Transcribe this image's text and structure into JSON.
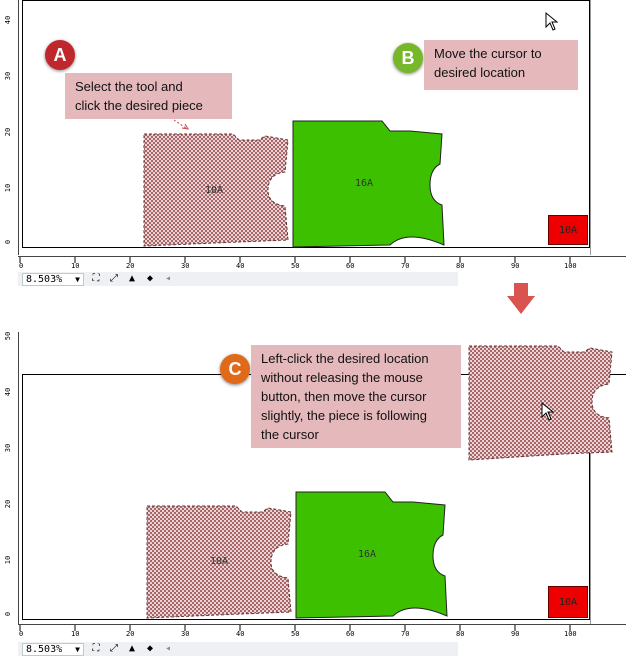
{
  "panel_top": {
    "callout_a": {
      "badge": "A",
      "text_line1": "Select the tool and",
      "text_line2": "click the desired piece"
    },
    "callout_b": {
      "badge": "B",
      "text_line1": "Move the cursor to",
      "text_line2": "desired location"
    },
    "pieces": {
      "left": "10A",
      "right": "16A",
      "marker": "10A"
    },
    "vruler_labels": [
      "40",
      "30",
      "20",
      "10",
      "0"
    ],
    "hruler_labels": [
      "0",
      "10",
      "20",
      "30",
      "40",
      "50",
      "60",
      "70",
      "80",
      "90",
      "100"
    ],
    "zoom": "8.503%"
  },
  "panel_bottom": {
    "callout_c": {
      "badge": "C",
      "text_line1": "Left-click the desired location",
      "text_line2": "without  releasing the mouse",
      "text_line3": "button, then move the cursor",
      "text_line4": "slightly, the piece is following",
      "text_line5": "the cursor"
    },
    "pieces": {
      "left": "10A",
      "right": "16A",
      "marker": "10A"
    },
    "vruler_labels": [
      "50",
      "40",
      "30",
      "20",
      "10",
      "0"
    ],
    "hruler_labels": [
      "0",
      "10",
      "20",
      "30",
      "40",
      "50",
      "60",
      "70",
      "80",
      "90",
      "100"
    ],
    "zoom": "8.503%"
  },
  "colors": {
    "green_piece": "#3cc000",
    "pattern_piece": "#caa9ad",
    "red_marker": "#ee0000",
    "badge_a": "#c0272d",
    "badge_b": "#77b82a",
    "badge_c": "#e06a1a",
    "arrow": "#d9534f"
  },
  "icons": {
    "dropdown": "chevron-down-icon",
    "fit": "fit-page-icon",
    "expand": "expand-icon",
    "hill1": "mountain-icon",
    "hill2": "mountain-filled-icon",
    "scroll_left": "scroll-left-icon"
  }
}
